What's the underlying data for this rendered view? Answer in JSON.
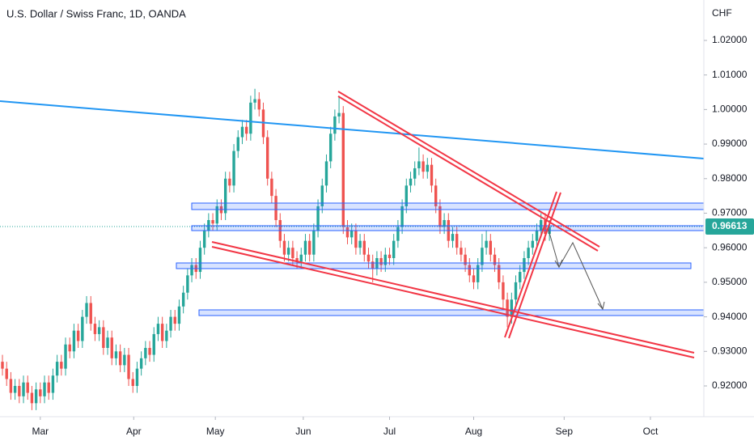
{
  "chart_data": {
    "type": "candlestick",
    "title": "U.S. Dollar / Swiss Franc, 1D, OANDA",
    "y_axis_label": "CHF",
    "up_color": "#26a69a",
    "down_color": "#ef5350",
    "grid": false,
    "last_price": 0.96613,
    "xlim": [
      -0.58,
      166.7
    ],
    "xticks": [
      {
        "value": 9,
        "label": "Mar"
      },
      {
        "value": 31.2,
        "label": "Apr"
      },
      {
        "value": 50.6,
        "label": "May"
      },
      {
        "value": 71.5,
        "label": "Jun"
      },
      {
        "value": 92,
        "label": "Jul"
      },
      {
        "value": 112,
        "label": "Aug"
      },
      {
        "value": 133.5,
        "label": "Sep"
      },
      {
        "value": 154,
        "label": "Oct"
      }
    ],
    "ylim": [
      0.9111,
      1.0317
    ],
    "yticks": [
      {
        "value": 0.92,
        "label": "0.92000"
      },
      {
        "value": 0.93,
        "label": "0.93000"
      },
      {
        "value": 0.94,
        "label": "0.94000"
      },
      {
        "value": 0.95,
        "label": "0.95000"
      },
      {
        "value": 0.96,
        "label": "0.96000"
      },
      {
        "value": 0.97,
        "label": "0.97000"
      },
      {
        "value": 0.98,
        "label": "0.98000"
      },
      {
        "value": 0.99,
        "label": "0.99000"
      },
      {
        "value": 1.0,
        "label": "1.00000"
      },
      {
        "value": 1.01,
        "label": "1.01000"
      },
      {
        "value": 1.02,
        "label": "1.02000"
      }
    ],
    "open": [
      0.927,
      0.925,
      0.922,
      0.918,
      0.92,
      0.917,
      0.921,
      0.918,
      0.915,
      0.919,
      0.917,
      0.921,
      0.918,
      0.923,
      0.927,
      0.925,
      0.932,
      0.93,
      0.936,
      0.933,
      0.94,
      0.944,
      0.938,
      0.935,
      0.937,
      0.931,
      0.934,
      0.928,
      0.93,
      0.926,
      0.929,
      0.922,
      0.92,
      0.925,
      0.928,
      0.931,
      0.929,
      0.935,
      0.938,
      0.933,
      0.936,
      0.94,
      0.938,
      0.943,
      0.947,
      0.952,
      0.955,
      0.953,
      0.96,
      0.965,
      0.968,
      0.967,
      0.972,
      0.97,
      0.98,
      0.978,
      0.988,
      0.992,
      0.995,
      0.993,
      1.002,
      1.003,
      1.0,
      0.992,
      0.98,
      0.975,
      0.968,
      0.962,
      0.958,
      0.96,
      0.957,
      0.956,
      0.958,
      0.962,
      0.958,
      0.965,
      0.972,
      0.978,
      0.985,
      0.993,
      0.998,
      0.999,
      0.966,
      0.963,
      0.965,
      0.96,
      0.962,
      0.958,
      0.956,
      0.954,
      0.957,
      0.955,
      0.958,
      0.957,
      0.962,
      0.966,
      0.972,
      0.978,
      0.98,
      0.983,
      0.985,
      0.982,
      0.984,
      0.978,
      0.972,
      0.966,
      0.968,
      0.962,
      0.964,
      0.96,
      0.958,
      0.955,
      0.952,
      0.95,
      0.955,
      0.96,
      0.962,
      0.958,
      0.955,
      0.95,
      0.945,
      0.94,
      0.945,
      0.95,
      0.953,
      0.957,
      0.96,
      0.962,
      0.965,
      0.968,
      0.964
    ],
    "high": [
      0.929,
      0.927,
      0.924,
      0.922,
      0.922,
      0.923,
      0.923,
      0.92,
      0.921,
      0.921,
      0.923,
      0.923,
      0.925,
      0.929,
      0.929,
      0.934,
      0.934,
      0.938,
      0.938,
      0.942,
      0.946,
      0.946,
      0.94,
      0.939,
      0.939,
      0.936,
      0.936,
      0.932,
      0.932,
      0.931,
      0.931,
      0.924,
      0.927,
      0.93,
      0.933,
      0.933,
      0.937,
      0.94,
      0.94,
      0.938,
      0.942,
      0.942,
      0.945,
      0.949,
      0.954,
      0.957,
      0.957,
      0.962,
      0.967,
      0.97,
      0.97,
      0.974,
      0.974,
      0.982,
      0.982,
      0.99,
      0.994,
      0.997,
      0.997,
      1.004,
      1.006,
      1.005,
      1.002,
      0.994,
      0.982,
      0.977,
      0.97,
      0.964,
      0.962,
      0.962,
      0.959,
      0.96,
      0.964,
      0.964,
      0.967,
      0.974,
      0.98,
      0.987,
      0.995,
      1.0,
      1.004,
      1.001,
      0.968,
      0.967,
      0.967,
      0.964,
      0.964,
      0.96,
      0.958,
      0.959,
      0.959,
      0.96,
      0.96,
      0.964,
      0.968,
      0.974,
      0.98,
      0.982,
      0.985,
      0.989,
      0.987,
      0.986,
      0.986,
      0.98,
      0.974,
      0.97,
      0.97,
      0.966,
      0.966,
      0.962,
      0.96,
      0.957,
      0.954,
      0.957,
      0.964,
      0.965,
      0.964,
      0.96,
      0.957,
      0.952,
      0.947,
      0.947,
      0.952,
      0.955,
      0.959,
      0.962,
      0.964,
      0.967,
      0.97,
      0.97,
      0.968
    ],
    "low": [
      0.923,
      0.92,
      0.916,
      0.916,
      0.915,
      0.915,
      0.916,
      0.913,
      0.913,
      0.915,
      0.915,
      0.916,
      0.916,
      0.921,
      0.923,
      0.923,
      0.928,
      0.928,
      0.931,
      0.931,
      0.938,
      0.936,
      0.933,
      0.933,
      0.929,
      0.929,
      0.926,
      0.926,
      0.924,
      0.924,
      0.92,
      0.918,
      0.918,
      0.923,
      0.926,
      0.927,
      0.927,
      0.933,
      0.931,
      0.931,
      0.934,
      0.936,
      0.936,
      0.941,
      0.945,
      0.95,
      0.951,
      0.951,
      0.958,
      0.963,
      0.965,
      0.965,
      0.968,
      0.968,
      0.976,
      0.976,
      0.986,
      0.99,
      0.991,
      0.991,
      1.0,
      0.998,
      0.99,
      0.978,
      0.973,
      0.966,
      0.96,
      0.956,
      0.956,
      0.955,
      0.954,
      0.954,
      0.956,
      0.956,
      0.956,
      0.963,
      0.97,
      0.976,
      0.983,
      0.991,
      0.996,
      0.964,
      0.961,
      0.961,
      0.958,
      0.958,
      0.956,
      0.954,
      0.95,
      0.952,
      0.953,
      0.953,
      0.955,
      0.955,
      0.96,
      0.964,
      0.97,
      0.976,
      0.978,
      0.981,
      0.98,
      0.98,
      0.976,
      0.97,
      0.964,
      0.964,
      0.96,
      0.96,
      0.958,
      0.956,
      0.953,
      0.95,
      0.948,
      0.948,
      0.953,
      0.958,
      0.956,
      0.953,
      0.948,
      0.942,
      0.937,
      0.938,
      0.943,
      0.948,
      0.951,
      0.955,
      0.958,
      0.96,
      0.963,
      0.962,
      0.962
    ],
    "close": [
      0.925,
      0.922,
      0.918,
      0.92,
      0.917,
      0.921,
      0.918,
      0.915,
      0.919,
      0.917,
      0.921,
      0.918,
      0.923,
      0.927,
      0.925,
      0.932,
      0.93,
      0.936,
      0.933,
      0.94,
      0.944,
      0.938,
      0.935,
      0.937,
      0.931,
      0.934,
      0.928,
      0.93,
      0.926,
      0.929,
      0.922,
      0.92,
      0.925,
      0.928,
      0.931,
      0.929,
      0.935,
      0.938,
      0.933,
      0.936,
      0.94,
      0.938,
      0.943,
      0.947,
      0.952,
      0.955,
      0.953,
      0.96,
      0.965,
      0.968,
      0.967,
      0.972,
      0.97,
      0.98,
      0.978,
      0.988,
      0.992,
      0.995,
      0.993,
      1.002,
      1.003,
      1.0,
      0.992,
      0.98,
      0.975,
      0.968,
      0.962,
      0.958,
      0.96,
      0.957,
      0.956,
      0.958,
      0.962,
      0.958,
      0.965,
      0.972,
      0.978,
      0.985,
      0.993,
      0.998,
      0.999,
      0.966,
      0.963,
      0.965,
      0.96,
      0.962,
      0.958,
      0.956,
      0.954,
      0.957,
      0.955,
      0.958,
      0.957,
      0.962,
      0.966,
      0.972,
      0.978,
      0.98,
      0.983,
      0.985,
      0.982,
      0.984,
      0.978,
      0.972,
      0.966,
      0.968,
      0.962,
      0.964,
      0.96,
      0.958,
      0.955,
      0.952,
      0.95,
      0.955,
      0.96,
      0.962,
      0.958,
      0.955,
      0.95,
      0.945,
      0.94,
      0.945,
      0.95,
      0.953,
      0.957,
      0.96,
      0.962,
      0.965,
      0.968,
      0.964,
      0.9661
    ]
  }
}
